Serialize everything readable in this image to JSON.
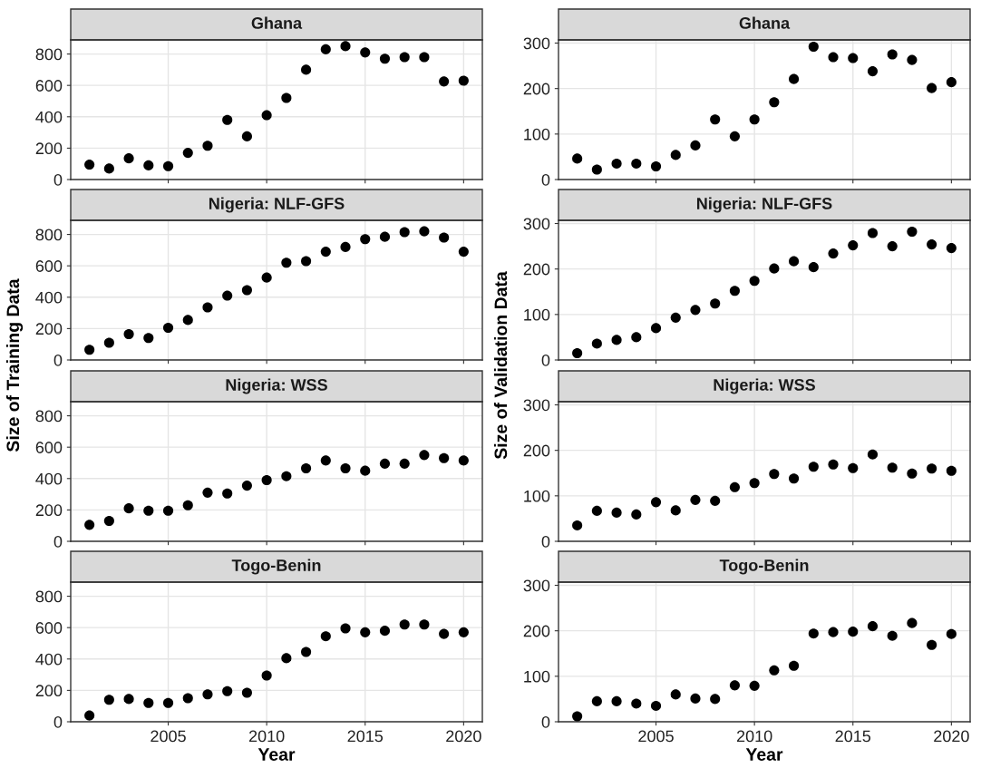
{
  "chart_data": [
    {
      "type": "scatter",
      "title": "Ghana",
      "ylabel": "Size of Training Data",
      "x": [
        2001,
        2002,
        2003,
        2004,
        2005,
        2006,
        2007,
        2008,
        2009,
        2010,
        2011,
        2012,
        2013,
        2014,
        2015,
        2016,
        2017,
        2018,
        2019,
        2020
      ],
      "color": "#000000",
      "marker": "circle",
      "grid": true,
      "tick_labels": "y",
      "xlim": [
        2000.05,
        2020.95
      ],
      "xticks": [
        2005,
        2010,
        2015,
        2020
      ],
      "ylim": [
        0,
        890
      ],
      "yticks": [
        0,
        200,
        400,
        600,
        800
      ],
      "values": [
        95,
        70,
        135,
        90,
        85,
        170,
        215,
        380,
        275,
        410,
        520,
        700,
        830,
        850,
        810,
        770,
        780,
        780,
        625,
        630
      ]
    },
    {
      "type": "scatter",
      "title": "Ghana",
      "ylabel": "Size of Validation Data",
      "x": [
        2001,
        2002,
        2003,
        2004,
        2005,
        2006,
        2007,
        2008,
        2009,
        2010,
        2011,
        2012,
        2013,
        2014,
        2015,
        2016,
        2017,
        2018,
        2019,
        2020
      ],
      "color": "#000000",
      "marker": "circle",
      "grid": true,
      "tick_labels": "y",
      "xlim": [
        2000.05,
        2020.95
      ],
      "xticks": [
        2005,
        2010,
        2015,
        2020
      ],
      "ylim": [
        0,
        307
      ],
      "yticks": [
        0,
        100,
        200,
        300
      ],
      "values": [
        46,
        22,
        35,
        35,
        29,
        54,
        75,
        132,
        95,
        132,
        170,
        221,
        292,
        269,
        267,
        238,
        275,
        263,
        201,
        214
      ]
    },
    {
      "type": "scatter",
      "title": "Nigeria: NLF-GFS",
      "x": [
        2001,
        2002,
        2003,
        2004,
        2005,
        2006,
        2007,
        2008,
        2009,
        2010,
        2011,
        2012,
        2013,
        2014,
        2015,
        2016,
        2017,
        2018,
        2019,
        2020
      ],
      "color": "#000000",
      "marker": "circle",
      "grid": true,
      "tick_labels": "y",
      "xlim": [
        2000.05,
        2020.95
      ],
      "xticks": [
        2005,
        2010,
        2015,
        2020
      ],
      "ylim": [
        0,
        890
      ],
      "yticks": [
        0,
        200,
        400,
        600,
        800
      ],
      "values": [
        65,
        110,
        165,
        140,
        205,
        255,
        335,
        410,
        445,
        525,
        620,
        630,
        690,
        720,
        770,
        785,
        815,
        820,
        780,
        690
      ]
    },
    {
      "type": "scatter",
      "title": "Nigeria: NLF-GFS",
      "x": [
        2001,
        2002,
        2003,
        2004,
        2005,
        2006,
        2007,
        2008,
        2009,
        2010,
        2011,
        2012,
        2013,
        2014,
        2015,
        2016,
        2017,
        2018,
        2019,
        2020
      ],
      "color": "#000000",
      "marker": "circle",
      "grid": true,
      "tick_labels": "y",
      "xlim": [
        2000.05,
        2020.95
      ],
      "xticks": [
        2005,
        2010,
        2015,
        2020
      ],
      "ylim": [
        0,
        307
      ],
      "yticks": [
        0,
        100,
        200,
        300
      ],
      "values": [
        15,
        36,
        44,
        50,
        70,
        93,
        110,
        124,
        152,
        174,
        201,
        217,
        204,
        234,
        252,
        279,
        250,
        282,
        254,
        246
      ]
    },
    {
      "type": "scatter",
      "title": "Nigeria: WSS",
      "x": [
        2001,
        2002,
        2003,
        2004,
        2005,
        2006,
        2007,
        2008,
        2009,
        2010,
        2011,
        2012,
        2013,
        2014,
        2015,
        2016,
        2017,
        2018,
        2019,
        2020
      ],
      "color": "#000000",
      "marker": "circle",
      "grid": true,
      "tick_labels": "y",
      "xlim": [
        2000.05,
        2020.95
      ],
      "xticks": [
        2005,
        2010,
        2015,
        2020
      ],
      "ylim": [
        0,
        890
      ],
      "yticks": [
        0,
        200,
        400,
        600,
        800
      ],
      "values": [
        105,
        130,
        210,
        195,
        195,
        230,
        310,
        305,
        355,
        390,
        415,
        465,
        515,
        465,
        450,
        495,
        495,
        550,
        530,
        515
      ]
    },
    {
      "type": "scatter",
      "title": "Nigeria: WSS",
      "x": [
        2001,
        2002,
        2003,
        2004,
        2005,
        2006,
        2007,
        2008,
        2009,
        2010,
        2011,
        2012,
        2013,
        2014,
        2015,
        2016,
        2017,
        2018,
        2019,
        2020
      ],
      "color": "#000000",
      "marker": "circle",
      "grid": true,
      "tick_labels": "y",
      "xlim": [
        2000.05,
        2020.95
      ],
      "xticks": [
        2005,
        2010,
        2015,
        2020
      ],
      "ylim": [
        0,
        307
      ],
      "yticks": [
        0,
        100,
        200,
        300
      ],
      "values": [
        35,
        67,
        63,
        59,
        86,
        68,
        91,
        89,
        119,
        128,
        148,
        138,
        164,
        169,
        161,
        191,
        162,
        149,
        160,
        155
      ]
    },
    {
      "type": "scatter",
      "title": "Togo-Benin",
      "xlabel": "Year",
      "x": [
        2001,
        2002,
        2003,
        2004,
        2005,
        2006,
        2007,
        2008,
        2009,
        2010,
        2011,
        2012,
        2013,
        2014,
        2015,
        2016,
        2017,
        2018,
        2019,
        2020
      ],
      "color": "#000000",
      "marker": "circle",
      "grid": true,
      "xlim": [
        2000.05,
        2020.95
      ],
      "xticks": [
        2005,
        2010,
        2015,
        2020
      ],
      "ylim": [
        0,
        890
      ],
      "yticks": [
        0,
        200,
        400,
        600,
        800
      ],
      "values": [
        40,
        140,
        145,
        120,
        120,
        150,
        175,
        195,
        185,
        295,
        405,
        445,
        545,
        595,
        570,
        580,
        620,
        620,
        560,
        570
      ]
    },
    {
      "type": "scatter",
      "title": "Togo-Benin",
      "xlabel": "Year",
      "x": [
        2001,
        2002,
        2003,
        2004,
        2005,
        2006,
        2007,
        2008,
        2009,
        2010,
        2011,
        2012,
        2013,
        2014,
        2015,
        2016,
        2017,
        2018,
        2019,
        2020
      ],
      "color": "#000000",
      "marker": "circle",
      "grid": true,
      "xlim": [
        2000.05,
        2020.95
      ],
      "xticks": [
        2005,
        2010,
        2015,
        2020
      ],
      "ylim": [
        0,
        307
      ],
      "yticks": [
        0,
        100,
        200,
        300
      ],
      "values": [
        12,
        45,
        45,
        40,
        35,
        60,
        51,
        50,
        80,
        79,
        113,
        123,
        194,
        197,
        198,
        210,
        189,
        217,
        169,
        193
      ]
    }
  ]
}
